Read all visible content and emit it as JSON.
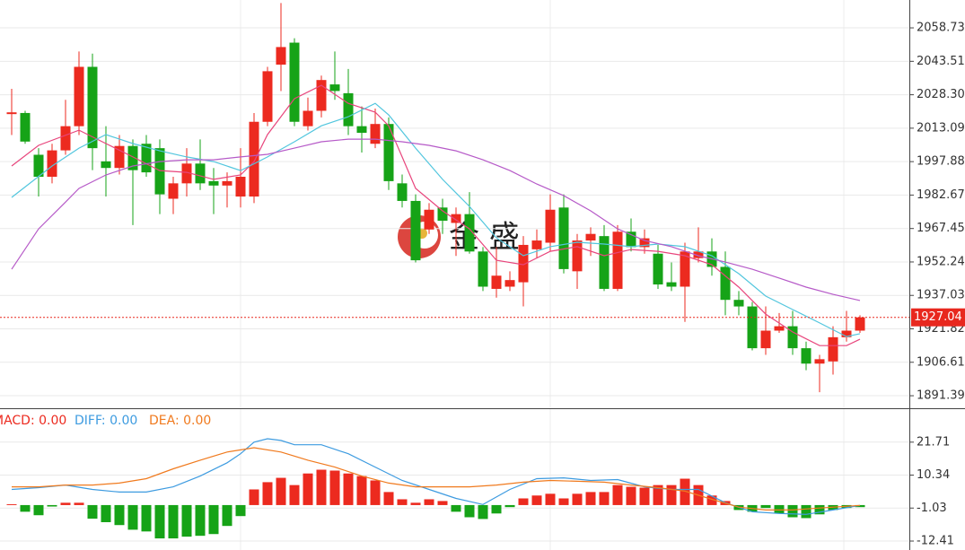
{
  "chart_data": [
    {
      "type": "candlestick",
      "ylim": [
        1885.7,
        2071.4
      ],
      "yticks": [
        2058.73,
        2043.51,
        {
          "value": 2028.3,
          "label": "2028.30"
        },
        2013.09,
        1997.88,
        1982.67,
        1967.45,
        1952.24,
        1937.03,
        1921.82,
        1906.61,
        1891.39
      ],
      "grid": true,
      "up_color": "#ec2a1f",
      "down_color": "#16a317",
      "watermark": "金 盛",
      "last_price": 1927.04,
      "open": [
        2019.5,
        2020,
        2001,
        1991,
        2003,
        2014,
        2041,
        1998,
        1995,
        2005,
        2006,
        2004,
        1981,
        1988,
        1997,
        1989,
        1987,
        1982,
        1982,
        2016,
        2042,
        2052,
        2014,
        2021,
        2033,
        2029,
        2014,
        2006,
        2015,
        1988,
        1980,
        1967,
        1977,
        1970,
        1974,
        1957,
        1940,
        1941,
        1943,
        1958,
        1961,
        1977,
        1948,
        1962,
        1964,
        1940,
        1966,
        1959,
        1956,
        1943,
        1941,
        1954,
        1957,
        1950,
        1935,
        1932,
        1913,
        1921,
        1923,
        1913,
        1906,
        1907,
        1918,
        1921
      ],
      "high": [
        2031,
        2021,
        2004,
        2006,
        2026,
        2048,
        2047,
        2014,
        2010,
        2008,
        2010,
        2008,
        1991,
        2004,
        2008,
        1995,
        1993,
        2004,
        2020,
        2041,
        2070,
        2054,
        2027,
        2037,
        2048,
        2040,
        2023,
        2022,
        2018,
        1992,
        1983,
        1979,
        1981,
        1977,
        1984,
        1959,
        1959,
        1948,
        1964,
        1967,
        1983,
        1983,
        1965,
        1968,
        1969,
        1969,
        1972,
        1967,
        1960,
        1952,
        1961,
        1968,
        1963,
        1957,
        1939,
        1934,
        1932,
        1929,
        1930,
        1916,
        1910,
        1923,
        1930,
        1928
      ],
      "low": [
        2010,
        2006,
        1982,
        1988,
        2001,
        2010,
        1994,
        1982,
        1992,
        1969,
        1991,
        1974,
        1974,
        1982,
        1985,
        1974,
        1977,
        1977,
        1979,
        2014,
        2030,
        2014,
        2012,
        2018,
        2026,
        2010,
        2002,
        2004,
        1985,
        1977,
        1952,
        1965,
        1965,
        1955,
        1956,
        1939,
        1936,
        1939,
        1932,
        1954,
        1957,
        1947,
        1940,
        1955,
        1939,
        1939,
        1957,
        1956,
        1940,
        1939,
        1925,
        1952,
        1946,
        1928,
        1928,
        1912,
        1910,
        1920,
        1910,
        1903,
        1893,
        1901,
        1916,
        1920
      ],
      "close": [
        2020.3,
        2007,
        1991,
        2003,
        2014,
        2041,
        2004,
        1995,
        2005,
        1994,
        1993,
        1983,
        1988,
        1997,
        1988,
        1987,
        1989,
        1991,
        2016,
        2039,
        2050,
        2016,
        2021,
        2035,
        2030,
        2014,
        2011,
        2015,
        1989,
        1980,
        1953,
        1976,
        1971,
        1974,
        1957,
        1941,
        1946,
        1944,
        1960,
        1962,
        1976,
        1949,
        1962,
        1965,
        1940,
        1966,
        1959,
        1963,
        1942,
        1941,
        1957,
        1957,
        1950,
        1935,
        1932,
        1913,
        1921,
        1923,
        1913,
        1906,
        1908,
        1918,
        1921,
        1927.04
      ],
      "series": [
        {
          "color": "#e8457c",
          "x": [
            0,
            2,
            5,
            7,
            9,
            11,
            13,
            15,
            17,
            18,
            19,
            21,
            23,
            25,
            27,
            28,
            29,
            30,
            32,
            34,
            36,
            38,
            40,
            42,
            44,
            46,
            48,
            50,
            52,
            54,
            56,
            58,
            60,
            62,
            63
          ],
          "values": [
            1995.9,
            2005.3,
            2012.2,
            2006.1,
            2000.0,
            1993.8,
            1993.0,
            1989.8,
            1991.8,
            1997.9,
            2010.2,
            2026.5,
            2032.6,
            2024.4,
            2020.4,
            2014.2,
            2000.0,
            1985.7,
            1975.5,
            1967.3,
            1953.0,
            1951.0,
            1957.1,
            1959.2,
            1955.1,
            1957.9,
            1957.1,
            1955.1,
            1951.0,
            1940.8,
            1928.5,
            1920.4,
            1914.2,
            1914.2,
            1917.1
          ]
        },
        {
          "color": "#52c6de",
          "x": [
            0,
            3,
            5,
            7,
            9,
            11,
            13,
            15,
            17,
            19,
            21,
            23,
            25,
            27,
            28,
            30,
            32,
            34,
            36,
            38,
            40,
            42,
            44,
            46,
            48,
            50,
            52,
            54,
            56,
            58,
            60,
            62,
            63
          ],
          "values": [
            1981.6,
            1995.9,
            2004.0,
            2010.2,
            2006.1,
            2002.8,
            2000.0,
            1997.9,
            1993.8,
            2000.0,
            2006.9,
            2014.2,
            2018.3,
            2024.4,
            2019.1,
            2004.0,
            1989.8,
            1977.5,
            1963.2,
            1955.1,
            1959.2,
            1961.2,
            1960.4,
            1959.2,
            1960.4,
            1959.2,
            1955.1,
            1946.9,
            1936.7,
            1930.6,
            1924.5,
            1918.3,
            1919.6
          ]
        },
        {
          "color": "#b65ac8",
          "x": [
            0,
            2,
            4,
            5,
            7,
            9,
            11,
            13,
            15,
            17,
            19,
            21,
            23,
            25,
            27,
            29,
            31,
            33,
            35,
            37,
            39,
            41,
            43,
            45,
            47,
            49,
            51,
            53,
            55,
            57,
            59,
            61,
            63
          ],
          "values": [
            1948.9,
            1967.3,
            1979.5,
            1985.7,
            1991.8,
            1995.9,
            1997.9,
            1998.7,
            1998.7,
            2000.0,
            2001.2,
            2004.0,
            2006.9,
            2008.1,
            2008.1,
            2006.9,
            2005.3,
            2002.8,
            1998.7,
            1993.8,
            1987.7,
            1982.4,
            1975.5,
            1967.3,
            1962.0,
            1959.2,
            1955.1,
            1952.2,
            1948.9,
            1944.9,
            1940.8,
            1937.5,
            1934.7
          ]
        }
      ]
    },
    {
      "type": "macd",
      "ylim": [
        -15.5,
        33.1
      ],
      "yticks": [
        21.71,
        10.34,
        -1.03,
        -12.41
      ],
      "grid": true,
      "up_color": "#ec2a1f",
      "down_color": "#16a317",
      "histogram": [
        0.3,
        -2.3,
        -3.5,
        -0.5,
        0.8,
        0.8,
        -4.7,
        -5.9,
        -6.9,
        -8.5,
        -9.1,
        -11.5,
        -11.5,
        -10.9,
        -10.6,
        -10.0,
        -7.2,
        -3.8,
        5.4,
        7.9,
        9.4,
        6.9,
        10.9,
        12.2,
        11.9,
        10.9,
        10.0,
        8.5,
        4.5,
        2.0,
        0.8,
        2.0,
        1.4,
        -2.3,
        -4.2,
        -4.8,
        -2.9,
        -0.7,
        2.3,
        3.3,
        3.9,
        2.3,
        3.9,
        4.5,
        4.5,
        6.9,
        6.3,
        6.0,
        6.9,
        6.9,
        9.1,
        6.9,
        3.3,
        1.4,
        -1.7,
        -2.3,
        -1.0,
        -2.9,
        -4.2,
        -4.5,
        -3.2,
        -1.7,
        -1.0,
        -0.7
      ],
      "legend": [
        {
          "text": "MACD: 0.00",
          "color": "#ec2a1f"
        },
        {
          "text": "DIFF: 0.00",
          "color": "#3d9be0"
        },
        {
          "text": "DEA: 0.00",
          "color": "#f07a1e"
        }
      ],
      "series": [
        {
          "color": "#3d9be0",
          "x": [
            0,
            2,
            4,
            6,
            8,
            10,
            12,
            14,
            16,
            17,
            18,
            19,
            20,
            21,
            23,
            25,
            27,
            29,
            31,
            33,
            35,
            37,
            39,
            41,
            43,
            45,
            47,
            49,
            51,
            53,
            55,
            57,
            59,
            61,
            63
          ],
          "values": [
            5.4,
            6.0,
            6.9,
            5.4,
            4.5,
            4.5,
            6.3,
            10.0,
            14.6,
            17.7,
            21.7,
            22.9,
            22.3,
            20.8,
            20.8,
            17.7,
            13.1,
            8.5,
            5.4,
            2.3,
            0.2,
            5.4,
            9.1,
            9.4,
            8.5,
            8.8,
            6.3,
            5.4,
            5.4,
            0.8,
            -2.3,
            -2.9,
            -3.2,
            -1.7,
            -0.1
          ]
        },
        {
          "color": "#f07a1e",
          "x": [
            0,
            2,
            4,
            6,
            8,
            10,
            12,
            14,
            16,
            18,
            20,
            22,
            24,
            26,
            28,
            30,
            32,
            34,
            36,
            38,
            40,
            42,
            44,
            46,
            48,
            50,
            52,
            54,
            56,
            58,
            60,
            63
          ],
          "values": [
            6.3,
            6.3,
            6.9,
            6.9,
            7.6,
            9.1,
            12.5,
            15.5,
            18.3,
            19.8,
            18.3,
            15.5,
            13.1,
            10.0,
            7.6,
            6.3,
            6.3,
            6.3,
            6.9,
            7.9,
            8.5,
            8.2,
            7.9,
            6.9,
            6.0,
            4.8,
            2.0,
            -0.7,
            -1.7,
            -1.7,
            -1.0,
            -0.1
          ]
        }
      ]
    }
  ]
}
